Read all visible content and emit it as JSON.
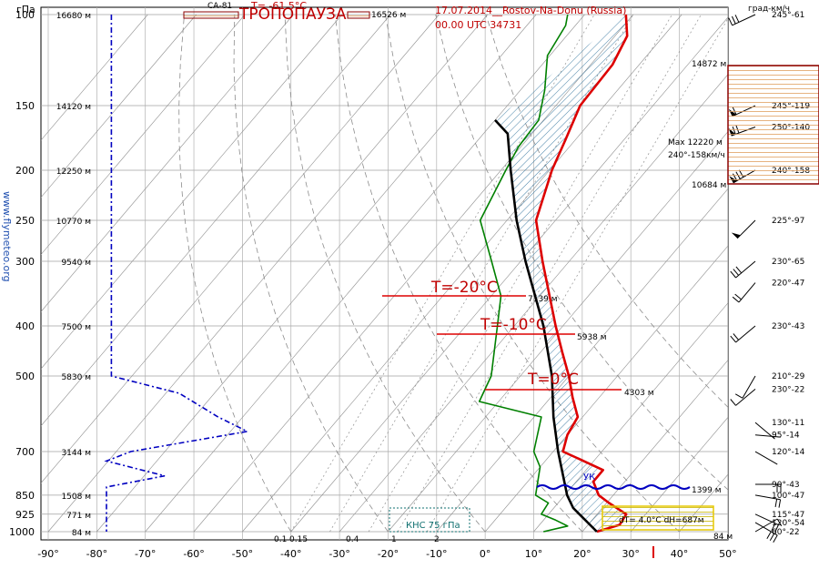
{
  "header": {
    "date_station": "17.07.2014__Rostov-Na-Donu (Russia)",
    "time_code": "00.00 UTC    34731",
    "wind_units": "град-км/ч",
    "pressure_units": "гПа",
    "site": "www.flymeteo.org"
  },
  "labels": {
    "tropopause": "ТРОПОПАУЗА",
    "tropopause_temp": "T= -61.5°C",
    "tropopause_height": "16526 м",
    "ca81": "СА-81",
    "t_minus20": "T=-20°C",
    "t_minus20_height": "7139 м",
    "t_minus10": "T=-10°C",
    "t_minus10_height": "5938 м",
    "t_zero": "T=0°C",
    "t_zero_height": "4303 м",
    "uk": "УК",
    "uk_height": "1399 м",
    "knc": "КНС 75 гПа",
    "dt_dh": "dT= 4.0°C dH=687м",
    "surface_height": "84 м",
    "jet_top": "14872 м",
    "jet_max": "Max 12220 м",
    "jet_max_wind": "240°-158км/ч",
    "jet_bottom": "10684 м",
    "mixing_ratios": [
      "0.1",
      "0.15",
      "0.4",
      "1",
      "2"
    ]
  },
  "colors": {
    "temperature": "#dd0000",
    "dewpoint": "#008000",
    "parcel": "#000000",
    "hatch": "#2b6f9a",
    "humidity_profile": "#0000c0",
    "jet_box": "#8b0000",
    "thermal_box": "#ffff00"
  },
  "chart_data": {
    "type": "line",
    "title": "17.07.2014__Rostov-Na-Donu (Russia)",
    "xlabel": "°C",
    "ylabel": "гПа",
    "x_ticks": [
      "-90°",
      "-80°",
      "-70°",
      "-60°",
      "-50°",
      "-40°",
      "-30°",
      "-20°",
      "-10°",
      "0°",
      "10°",
      "20°",
      "30°",
      "40°",
      "50°"
    ],
    "pressure_levels": [
      {
        "p": "100",
        "h": "16680 м"
      },
      {
        "p": "150",
        "h": "14120 м"
      },
      {
        "p": "200",
        "h": "12250 м"
      },
      {
        "p": "250",
        "h": "10770 м"
      },
      {
        "p": "300",
        "h": "9540 м"
      },
      {
        "p": "400",
        "h": "7500 м"
      },
      {
        "p": "500",
        "h": "5830 м"
      },
      {
        "p": "700",
        "h": "3144 м"
      },
      {
        "p": "850",
        "h": "1508 м"
      },
      {
        "p": "925",
        "h": "771 м"
      },
      {
        "p": "1000",
        "h": "84 м"
      }
    ],
    "ylim": [
      100,
      1000
    ],
    "series": [
      {
        "name": "temperature",
        "points": [
          [
            1000,
            23.0
          ],
          [
            970,
            26.5
          ],
          [
            925,
            26.0
          ],
          [
            880,
            20.5
          ],
          [
            850,
            17.0
          ],
          [
            800,
            13.5
          ],
          [
            760,
            13.5
          ],
          [
            720,
            6.0
          ],
          [
            700,
            2.0
          ],
          [
            650,
            0.0
          ],
          [
            600,
            -1.0
          ],
          [
            550,
            -5.5
          ],
          [
            500,
            -10.0
          ],
          [
            450,
            -15.5
          ],
          [
            400,
            -21.5
          ],
          [
            350,
            -28.0
          ],
          [
            300,
            -35.5
          ],
          [
            250,
            -44.0
          ],
          [
            200,
            -49.5
          ],
          [
            175,
            -52.0
          ],
          [
            150,
            -55.0
          ],
          [
            125,
            -55.5
          ],
          [
            110,
            -57.5
          ],
          [
            100,
            -61.5
          ]
        ]
      },
      {
        "name": "dewpoint",
        "points": [
          [
            1000,
            12.0
          ],
          [
            975,
            16.0
          ],
          [
            950,
            12.5
          ],
          [
            925,
            8.5
          ],
          [
            880,
            8.0
          ],
          [
            850,
            4.0
          ],
          [
            750,
            0.0
          ],
          [
            700,
            -4.0
          ],
          [
            600,
            -8.5
          ],
          [
            560,
            -24.0
          ],
          [
            500,
            -26.0
          ],
          [
            400,
            -33.5
          ],
          [
            350,
            -38.0
          ],
          [
            300,
            -46.0
          ],
          [
            250,
            -55.5
          ],
          [
            200,
            -59.0
          ],
          [
            180,
            -60.5
          ],
          [
            160,
            -61.0
          ],
          [
            140,
            -65.0
          ],
          [
            120,
            -70.5
          ],
          [
            105,
            -72.0
          ],
          [
            100,
            -73.5
          ]
        ]
      },
      {
        "name": "parcel",
        "points": [
          [
            1000,
            23.0
          ],
          [
            900,
            14.0
          ],
          [
            850,
            10.5
          ],
          [
            700,
            1.0
          ],
          [
            600,
            -6.0
          ],
          [
            500,
            -13.5
          ],
          [
            400,
            -24.0
          ],
          [
            300,
            -39.0
          ],
          [
            250,
            -48.0
          ],
          [
            200,
            -58.0
          ],
          [
            170,
            -65.0
          ],
          [
            160,
            -70.0
          ]
        ]
      }
    ],
    "winds": [
      {
        "p": 100,
        "dir": 245,
        "speed": 61,
        "label": "245°-61"
      },
      {
        "p": 150,
        "dir": 245,
        "speed": 119,
        "label": "245°-119"
      },
      {
        "p": 165,
        "dir": 250,
        "speed": 140,
        "label": "250°-140"
      },
      {
        "p": 200,
        "dir": 240,
        "speed": 158,
        "label": "240°-158"
      },
      {
        "p": 250,
        "dir": 225,
        "speed": 97,
        "label": "225°-97"
      },
      {
        "p": 300,
        "dir": 230,
        "speed": 65,
        "label": "230°-65"
      },
      {
        "p": 330,
        "dir": 220,
        "speed": 47,
        "label": "220°-47"
      },
      {
        "p": 400,
        "dir": 230,
        "speed": 43,
        "label": "230°-43"
      },
      {
        "p": 500,
        "dir": 210,
        "speed": 29,
        "label": "210°-29"
      },
      {
        "p": 530,
        "dir": 230,
        "speed": 22,
        "label": "230°-22"
      },
      {
        "p": 615,
        "dir": 130,
        "speed": 11,
        "label": "130°-11"
      },
      {
        "p": 650,
        "dir": 95,
        "speed": 14,
        "label": "95°-14"
      },
      {
        "p": 700,
        "dir": 120,
        "speed": 14,
        "label": "120°-14"
      },
      {
        "p": 810,
        "dir": 90,
        "speed": 43,
        "label": "90°-43"
      },
      {
        "p": 850,
        "dir": 100,
        "speed": 47,
        "label": "100°-47"
      },
      {
        "p": 925,
        "dir": 115,
        "speed": 47,
        "label": "115°-47"
      },
      {
        "p": 960,
        "dir": 120,
        "speed": 54,
        "label": "120°-54"
      },
      {
        "p": 1000,
        "dir": 60,
        "speed": 22,
        "label": "60°-22"
      }
    ]
  }
}
